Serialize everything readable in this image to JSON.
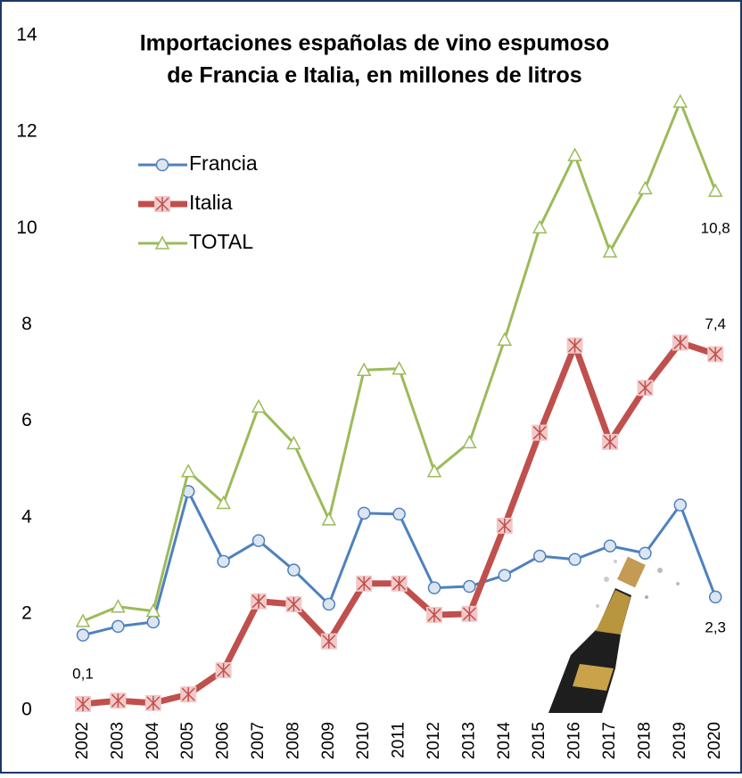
{
  "chart_data": {
    "type": "line",
    "title": [
      "Importaciones españolas de vino espumoso",
      "de Francia e Italia, en millones de litros"
    ],
    "categories": [
      "2002",
      "2003",
      "2004",
      "2005",
      "2006",
      "2007",
      "2008",
      "2009",
      "2010",
      "2011",
      "2012",
      "2013",
      "2014",
      "2015",
      "2016",
      "2017",
      "2018",
      "2019",
      "2020"
    ],
    "series": [
      {
        "name": "Francia",
        "color": "#4f81bd",
        "marker": "circle",
        "values": [
          1.56,
          1.74,
          1.83,
          4.54,
          3.09,
          3.52,
          2.91,
          2.2,
          4.09,
          4.07,
          2.54,
          2.57,
          2.8,
          3.2,
          3.13,
          3.41,
          3.26,
          4.26,
          2.35
        ],
        "value_labels": [
          null,
          null,
          null,
          null,
          null,
          null,
          null,
          null,
          null,
          null,
          null,
          null,
          null,
          null,
          null,
          null,
          null,
          null,
          "2,3"
        ]
      },
      {
        "name": "Italia",
        "color": "#c0504d",
        "marker": "star",
        "values": [
          0.13,
          0.2,
          0.15,
          0.33,
          0.83,
          2.26,
          2.2,
          1.43,
          2.63,
          2.63,
          1.98,
          2.0,
          3.83,
          5.76,
          7.57,
          5.57,
          6.69,
          7.63,
          7.39
        ],
        "value_labels": [
          "0,1",
          null,
          null,
          null,
          null,
          null,
          null,
          null,
          null,
          null,
          null,
          null,
          null,
          null,
          null,
          null,
          null,
          null,
          "7,4"
        ]
      },
      {
        "name": "TOTAL",
        "color": "#9bbb59",
        "marker": "triangle",
        "values": [
          1.85,
          2.15,
          2.06,
          4.96,
          4.3,
          6.3,
          5.54,
          3.96,
          7.06,
          7.09,
          4.96,
          5.56,
          7.69,
          10.02,
          11.52,
          9.52,
          10.83,
          12.63,
          10.78
        ],
        "value_labels": [
          null,
          null,
          null,
          null,
          null,
          null,
          null,
          null,
          null,
          null,
          null,
          null,
          null,
          null,
          null,
          null,
          null,
          null,
          "10,8"
        ]
      }
    ],
    "ylim": [
      0,
      14
    ],
    "yticks": [
      0,
      2,
      4,
      6,
      8,
      10,
      12,
      14
    ],
    "grid": false,
    "legend": "upper-left"
  }
}
